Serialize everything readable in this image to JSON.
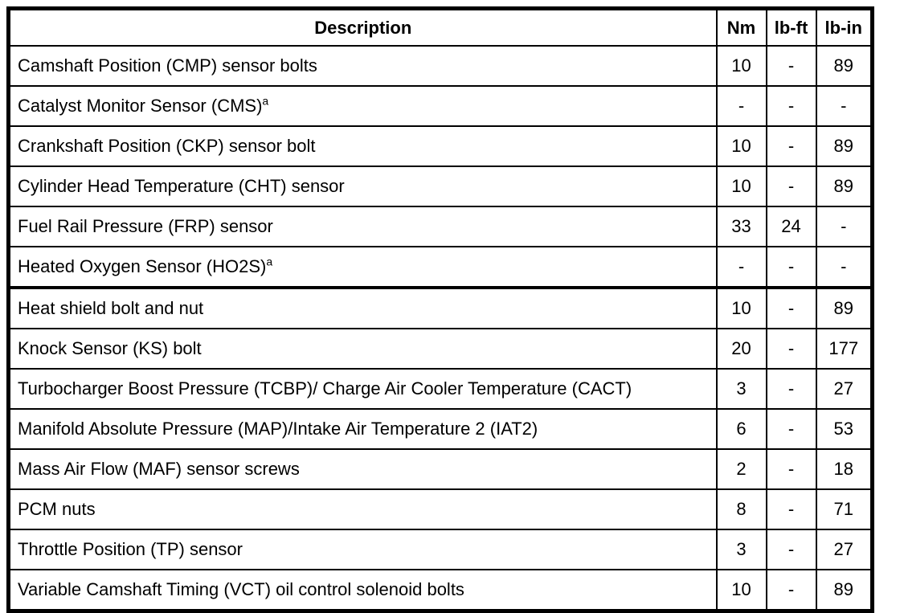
{
  "document": {
    "kind": "torque-specification-table",
    "colors": {
      "background": "#ffffff",
      "border": "#000000",
      "text": "#000000"
    }
  },
  "table": {
    "columns": {
      "description": "Description",
      "nm": "Nm",
      "lb_ft": "lb-ft",
      "lb_in": "lb-in"
    },
    "rows": [
      {
        "description": "Camshaft Position (CMP) sensor bolts",
        "superscript": "",
        "nm": "10",
        "lb_ft": "-",
        "lb_in": "89",
        "section_start": false
      },
      {
        "description": "Catalyst Monitor Sensor (CMS)",
        "superscript": "a",
        "nm": "-",
        "lb_ft": "-",
        "lb_in": "-",
        "section_start": false
      },
      {
        "description": "Crankshaft Position (CKP) sensor bolt",
        "superscript": "",
        "nm": "10",
        "lb_ft": "-",
        "lb_in": "89",
        "section_start": false
      },
      {
        "description": "Cylinder Head Temperature (CHT) sensor",
        "superscript": "",
        "nm": "10",
        "lb_ft": "-",
        "lb_in": "89",
        "section_start": false
      },
      {
        "description": "Fuel Rail Pressure (FRP) sensor",
        "superscript": "",
        "nm": "33",
        "lb_ft": "24",
        "lb_in": "-",
        "section_start": false
      },
      {
        "description": "Heated Oxygen Sensor (HO2S)",
        "superscript": "a",
        "nm": "-",
        "lb_ft": "-",
        "lb_in": "-",
        "section_start": false
      },
      {
        "description": "Heat shield bolt and nut",
        "superscript": "",
        "nm": "10",
        "lb_ft": "-",
        "lb_in": "89",
        "section_start": true
      },
      {
        "description": "Knock Sensor (KS) bolt",
        "superscript": "",
        "nm": "20",
        "lb_ft": "-",
        "lb_in": "177",
        "section_start": false
      },
      {
        "description": "Turbocharger Boost Pressure (TCBP)/ Charge Air Cooler Temperature (CACT)",
        "superscript": "",
        "nm": "3",
        "lb_ft": "-",
        "lb_in": "27",
        "section_start": false
      },
      {
        "description": "Manifold Absolute Pressure (MAP)/Intake Air Temperature 2 (IAT2)",
        "superscript": "",
        "nm": "6",
        "lb_ft": "-",
        "lb_in": "53",
        "section_start": false
      },
      {
        "description": "Mass Air Flow (MAF) sensor screws",
        "superscript": "",
        "nm": "2",
        "lb_ft": "-",
        "lb_in": "18",
        "section_start": false
      },
      {
        "description": "PCM nuts",
        "superscript": "",
        "nm": "8",
        "lb_ft": "-",
        "lb_in": "71",
        "section_start": false
      },
      {
        "description": "Throttle Position (TP) sensor",
        "superscript": "",
        "nm": "3",
        "lb_ft": "-",
        "lb_in": "27",
        "section_start": false
      },
      {
        "description": "Variable Camshaft Timing (VCT) oil control solenoid bolts",
        "superscript": "",
        "nm": "10",
        "lb_ft": "-",
        "lb_in": "89",
        "section_start": false
      }
    ]
  }
}
